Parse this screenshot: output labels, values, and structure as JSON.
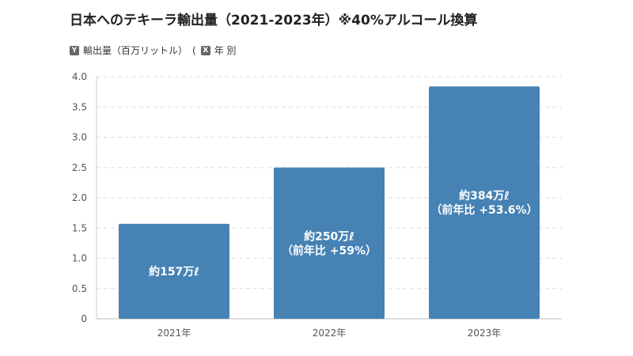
{
  "chart_data": {
    "type": "bar",
    "title": "日本へのテキーラ輸出量（2021-2023年）※40%アルコール換算",
    "ylabel": "輸出量（百万リットル）",
    "xlabel": "年 別",
    "y_key": "Y",
    "x_key": "X",
    "legend_open": "(",
    "categories": [
      "2021年",
      "2022年",
      "2023年"
    ],
    "values": [
      1.57,
      2.5,
      3.84
    ],
    "data_labels": [
      [
        "約157万ℓ"
      ],
      [
        "約250万ℓ",
        "（前年比 +59%）"
      ],
      [
        "約384万ℓ",
        "（前年比 +53.6%）"
      ]
    ],
    "ylim": [
      0,
      4.0
    ],
    "yticks": [
      "0",
      "0.5",
      "1.0",
      "1.5",
      "2.0",
      "2.5",
      "3.0",
      "3.5",
      "4.0"
    ],
    "grid": true,
    "bar_color": "#4682b4"
  }
}
